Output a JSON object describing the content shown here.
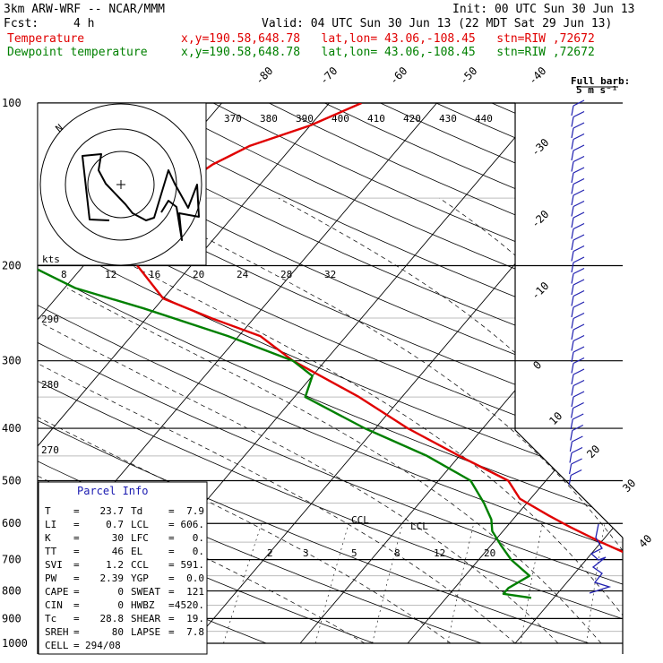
{
  "header": {
    "line1_left": "3km ARW-WRF -- NCAR/MMM",
    "line1_right": "Init: 00 UTC Sun 30 Jun 13",
    "fcst_label": "Fcst:",
    "fcst_value": "4 h",
    "valid": "Valid: 04 UTC Sun 30 Jun 13 (22 MDT Sat 29 Jun 13)",
    "series": [
      {
        "name": "Temperature",
        "info": "x,y=190.58,648.78   lat,lon= 43.06,-108.45   stn=RIW ,72672",
        "color": "#e00000"
      },
      {
        "name": "Dewpoint temperature",
        "info": "x,y=190.58,648.78   lat,lon= 43.06,-108.45   stn=RIW ,72672",
        "color": "#008000"
      }
    ]
  },
  "barb_key": {
    "line1": "Full barb:",
    "line2": "5 m s⁻¹"
  },
  "hodograph": {
    "north_label": "N",
    "unit_label": "kts"
  },
  "parcel_info": {
    "title": "Parcel Info",
    "rows": [
      [
        "T",
        "23.7",
        "Td",
        "7.9"
      ],
      [
        "LI",
        "0.7",
        "LCL",
        "606."
      ],
      [
        "K",
        "30",
        "LFC",
        "0."
      ],
      [
        "TT",
        "46",
        "EL",
        "0."
      ],
      [
        "SVI",
        "1.2",
        "CCL",
        "591."
      ],
      [
        "PW",
        "2.39",
        "YGP",
        "0.0"
      ],
      [
        "CAPE",
        "0",
        "SWEAT",
        "121"
      ],
      [
        "CIN",
        "0",
        "HWBZ",
        "4520."
      ],
      [
        "Tc",
        "28.8",
        "SHEAR",
        "19."
      ],
      [
        "SREH",
        "80",
        "LAPSE",
        "7.8"
      ],
      [
        "CELL",
        "294/08",
        "",
        ""
      ]
    ]
  },
  "chart_data": {
    "type": "skew-t",
    "pressure_levels": [
      100,
      200,
      300,
      400,
      500,
      600,
      700,
      800,
      900,
      1000
    ],
    "isotherm_labels": [
      -80,
      -70,
      -60,
      -50,
      -40,
      -30,
      -20,
      -10,
      0,
      10,
      20,
      30,
      40
    ],
    "theta_labels": [
      370,
      380,
      390,
      400,
      410,
      420,
      430,
      440
    ],
    "theta_labels_left": [
      290,
      280,
      270
    ],
    "mixing_ratio_labels_top": [
      8,
      12,
      16,
      20,
      24,
      28,
      32
    ],
    "mixing_ratio_labels_bottom": [
      2,
      3,
      5,
      8,
      12,
      20
    ],
    "level_markers": [
      "CCL",
      "LCL"
    ],
    "series": [
      {
        "name": "Temperature",
        "color": "#e00000",
        "points": [
          [
            824,
            27.5
          ],
          [
            810,
            26.5
          ],
          [
            800,
            24
          ],
          [
            750,
            18
          ],
          [
            700,
            15
          ],
          [
            650,
            10
          ],
          [
            610,
            6
          ],
          [
            580,
            3
          ],
          [
            540,
            -1
          ],
          [
            500,
            -3.5
          ],
          [
            450,
            -10
          ],
          [
            400,
            -17
          ],
          [
            350,
            -24
          ],
          [
            300,
            -33
          ],
          [
            270,
            -38
          ],
          [
            250,
            -44
          ],
          [
            230,
            -50
          ],
          [
            200,
            -55
          ],
          [
            180,
            -57
          ],
          [
            160,
            -58
          ],
          [
            140,
            -57
          ],
          [
            130,
            -56
          ],
          [
            120,
            -54
          ],
          [
            110,
            -50
          ],
          [
            100,
            -47
          ]
        ]
      },
      {
        "name": "Dewpoint temperature",
        "color": "#008000",
        "points": [
          [
            824,
            7.9
          ],
          [
            810,
            5
          ],
          [
            790,
            5
          ],
          [
            750,
            6
          ],
          [
            700,
            3
          ],
          [
            660,
            1
          ],
          [
            620,
            -1
          ],
          [
            590,
            -2
          ],
          [
            550,
            -4
          ],
          [
            500,
            -7
          ],
          [
            450,
            -13
          ],
          [
            400,
            -21
          ],
          [
            350,
            -29
          ],
          [
            320,
            -30
          ],
          [
            300,
            -33
          ],
          [
            270,
            -41
          ],
          [
            240,
            -51
          ],
          [
            220,
            -59
          ],
          [
            200,
            -65
          ],
          [
            170,
            -70
          ],
          [
            150,
            -70
          ],
          [
            130,
            -71
          ],
          [
            115,
            -70
          ],
          [
            100,
            -70
          ]
        ]
      }
    ]
  }
}
